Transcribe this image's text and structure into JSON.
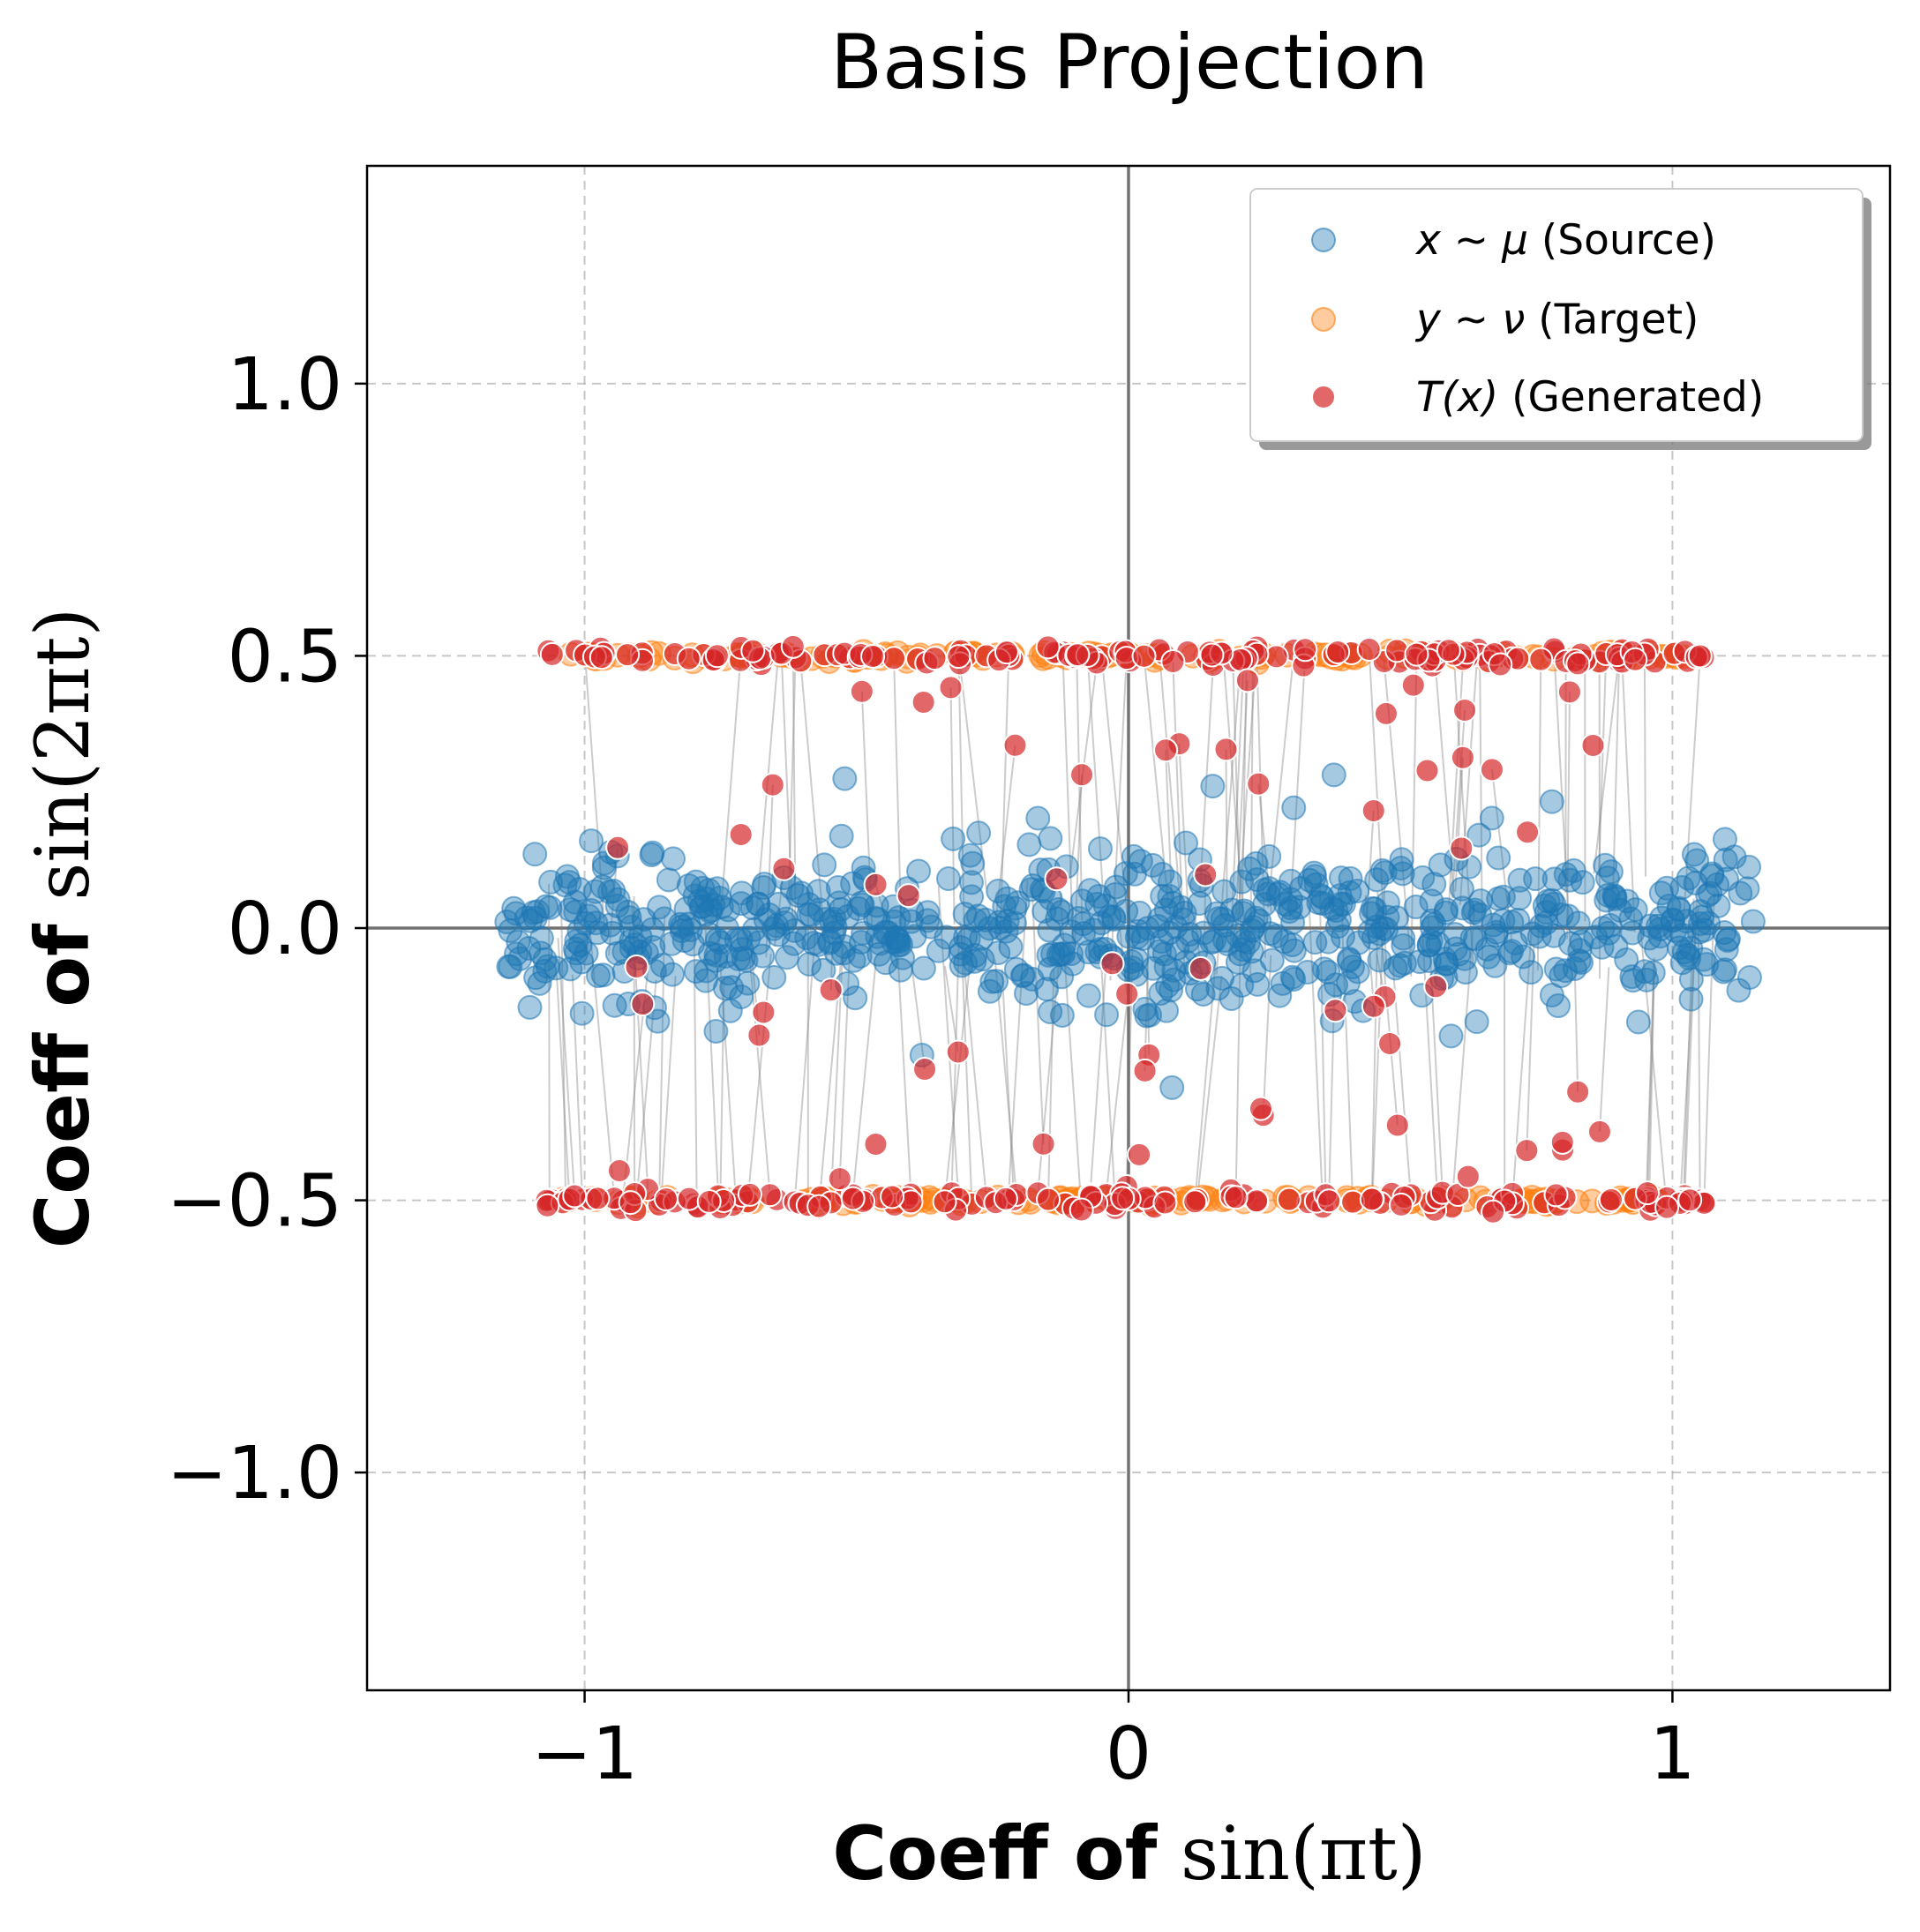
{
  "chart_data": {
    "type": "scatter",
    "title": "Basis Projection",
    "xlabel": {
      "bold": "Coeff of",
      "math": "sin(πt)"
    },
    "ylabel": {
      "bold": "Coeff of",
      "math": "sin(2πt)"
    },
    "xlim": [
      -1.4,
      1.4
    ],
    "ylim": [
      -1.4,
      1.4
    ],
    "xticks": [
      -1,
      0,
      1
    ],
    "xtick_labels": [
      "−1",
      "0",
      "1"
    ],
    "yticks": [
      1.0,
      0.5,
      0.0,
      -0.5,
      -1.0
    ],
    "ytick_labels": [
      "1.0",
      "0.5",
      "0.0",
      "−0.5",
      "−1.0"
    ],
    "grid": true,
    "zero_lines": true,
    "legend_position": "upper-right",
    "series": [
      {
        "name": "x ~ μ (Source)",
        "legend_math": "x ~ μ",
        "legend_text": " (Source)",
        "color": "#1f77b4",
        "alpha": 0.4,
        "distribution": {
          "x_range": [
            -1.15,
            1.15
          ],
          "y_mean": 0.0,
          "y_std": 0.07,
          "count": 700
        }
      },
      {
        "name": "y ~ ν (Target)",
        "legend_math": "y ~ ν",
        "legend_text": " (Target)",
        "color": "#ff7f0e",
        "alpha": 0.4,
        "distribution": {
          "x_range": [
            -1.05,
            1.05
          ],
          "y_levels": [
            0.5,
            -0.5
          ],
          "count": 300
        }
      },
      {
        "name": "T(x) (Generated)",
        "legend_math": "T(x)",
        "legend_text": " (Generated)",
        "color": "#d62728",
        "alpha": 0.7,
        "distribution": {
          "x_range": [
            -1.07,
            1.07
          ],
          "y_levels": [
            0.5,
            -0.5
          ],
          "count": 300,
          "outliers": 60
        }
      }
    ],
    "connection_lines": {
      "color": "#808080",
      "alpha": 0.4,
      "description": "lines linking each source point to its generated point"
    }
  }
}
